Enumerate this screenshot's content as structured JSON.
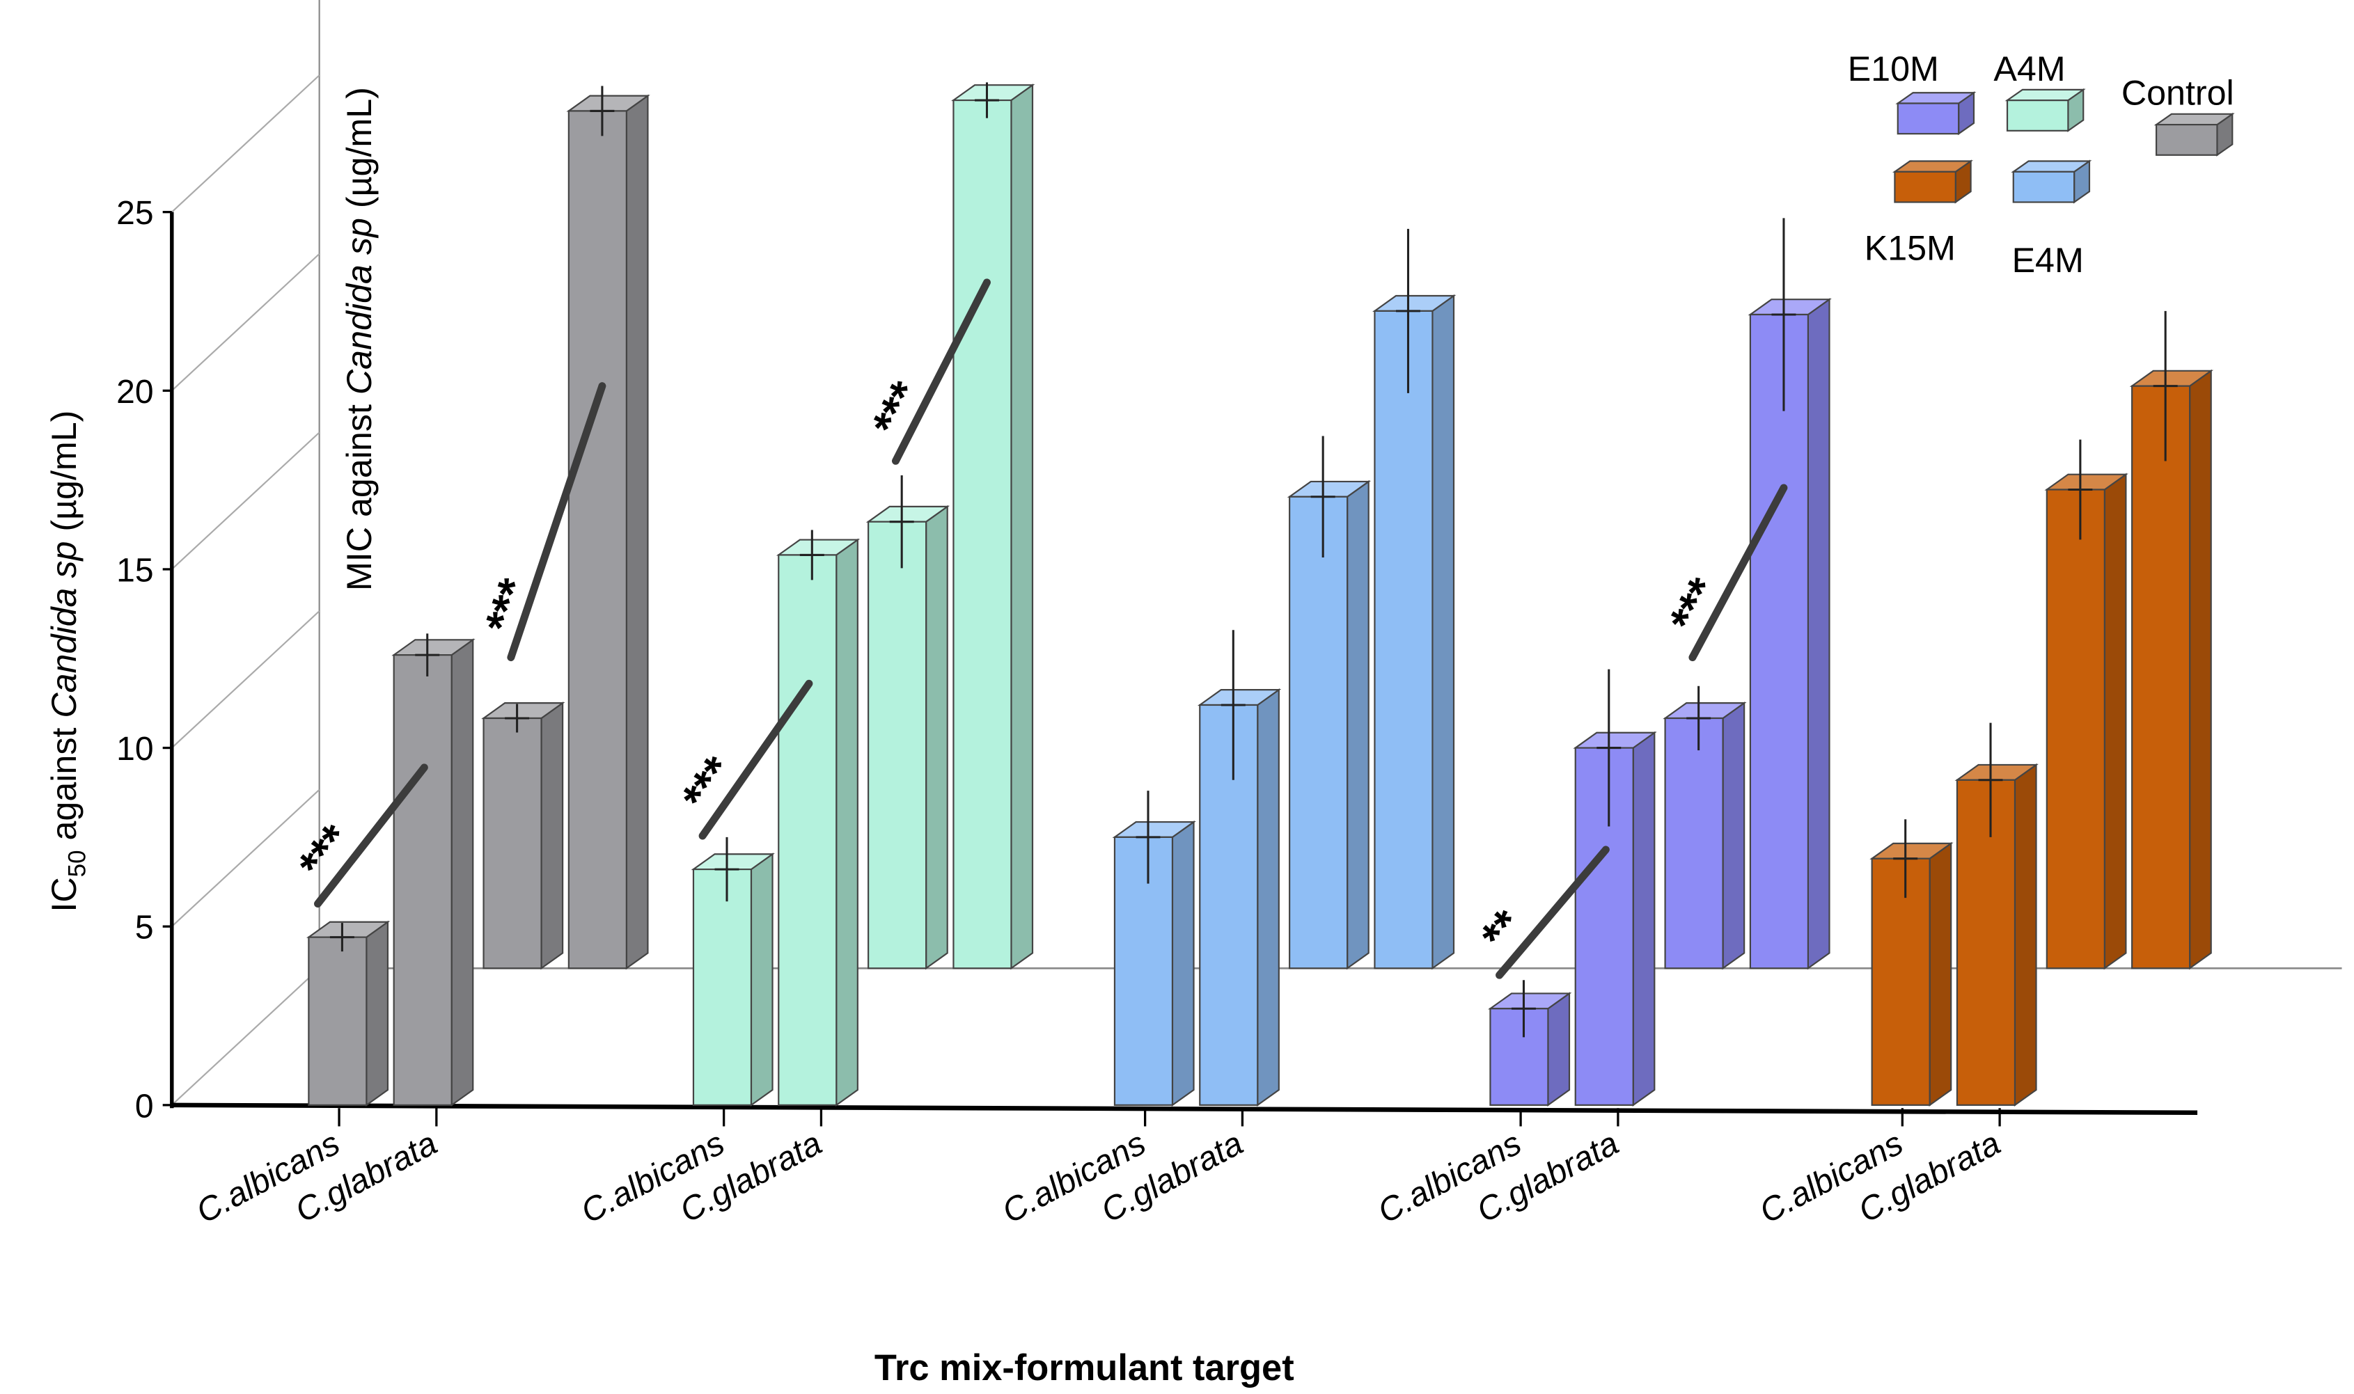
{
  "chart_data": {
    "type": "bar",
    "subtype": "3d-grouped-bar",
    "xlabel": "Trc mix-formulant target",
    "ylabel_front": {
      "pre": "IC",
      "sub": "50",
      "mid": " against ",
      "ital": "Candida sp",
      "post": " (µg/mL)"
    },
    "ylabel_back": {
      "pre": "MIC against ",
      "ital": "Candida sp",
      "post": " (µg/mL)"
    },
    "ylim": [
      0,
      25
    ],
    "yticks": [
      "0",
      "5",
      "10",
      "15",
      "20",
      "25"
    ],
    "category_labels": [
      "C.albicans",
      "C.glabrata"
    ],
    "legend": [
      {
        "name": "E10M",
        "color": "#8d8bf5"
      },
      {
        "name": "A4M",
        "color": "#b4f2dd"
      },
      {
        "name": "Control",
        "color": "#9c9ca0"
      },
      {
        "name": "K15M",
        "color": "#c75f0a"
      },
      {
        "name": "E4M",
        "color": "#8fbef5"
      }
    ],
    "groups": [
      {
        "name": "Control",
        "color": "#9c9ca0",
        "ic50": [
          {
            "category": "C.albicans",
            "value": 4.7,
            "error": 0.4
          },
          {
            "category": "C.glabrata",
            "value": 12.6,
            "error": 0.6
          }
        ],
        "mic": [
          {
            "category": "C.albicans",
            "value": 7.0,
            "error": 0.4
          },
          {
            "category": "C.glabrata",
            "value": 24.0,
            "error": 0.7
          }
        ],
        "annotations": [
          {
            "layer": "ic50",
            "text": "***"
          },
          {
            "layer": "mic",
            "text": "***"
          }
        ]
      },
      {
        "name": "A4M",
        "color": "#b4f2dd",
        "ic50": [
          {
            "category": "C.albicans",
            "value": 6.6,
            "error": 0.9
          },
          {
            "category": "C.glabrata",
            "value": 15.4,
            "error": 0.7
          }
        ],
        "mic": [
          {
            "category": "C.albicans",
            "value": 12.5,
            "error": 1.3
          },
          {
            "category": "C.glabrata",
            "value": 24.3,
            "error": 0.5
          }
        ],
        "annotations": [
          {
            "layer": "ic50",
            "text": "***"
          },
          {
            "layer": "mic",
            "text": "***"
          }
        ]
      },
      {
        "name": "E4M",
        "color": "#8fbef5",
        "ic50": [
          {
            "category": "C.albicans",
            "value": 7.5,
            "error": 1.3
          },
          {
            "category": "C.glabrata",
            "value": 11.2,
            "error": 2.1
          }
        ],
        "mic": [
          {
            "category": "C.albicans",
            "value": 13.2,
            "error": 1.7
          },
          {
            "category": "C.glabrata",
            "value": 18.4,
            "error": 2.3
          }
        ],
        "annotations": []
      },
      {
        "name": "E10M",
        "color": "#8d8bf5",
        "ic50": [
          {
            "category": "C.albicans",
            "value": 2.7,
            "error": 0.8
          },
          {
            "category": "C.glabrata",
            "value": 10.0,
            "error": 2.2
          }
        ],
        "mic": [
          {
            "category": "C.albicans",
            "value": 7.0,
            "error": 0.9
          },
          {
            "category": "C.glabrata",
            "value": 18.3,
            "error": 2.7
          }
        ],
        "annotations": [
          {
            "layer": "ic50",
            "text": "**"
          },
          {
            "layer": "mic",
            "text": "***"
          }
        ]
      },
      {
        "name": "K15M",
        "color": "#c75f0a",
        "ic50": [
          {
            "category": "C.albicans",
            "value": 6.9,
            "error": 1.1
          },
          {
            "category": "C.glabrata",
            "value": 9.1,
            "error": 1.6
          }
        ],
        "mic": [
          {
            "category": "C.albicans",
            "value": 13.4,
            "error": 1.4
          },
          {
            "category": "C.glabrata",
            "value": 16.3,
            "error": 2.1
          }
        ],
        "annotations": []
      }
    ]
  }
}
